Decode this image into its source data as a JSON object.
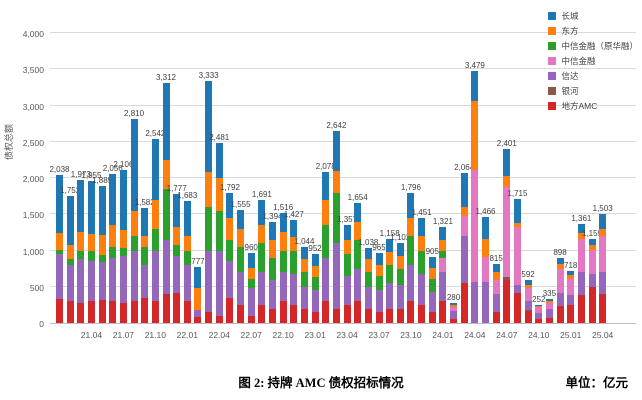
{
  "caption": {
    "title": "图 2: 持牌 AMC 债权招标情况",
    "unit": "单位：亿元"
  },
  "chart_data": {
    "type": "bar",
    "stacked": true,
    "title": "",
    "xlabel": "",
    "ylabel": "债权总额",
    "ylim": [
      0,
      4000
    ],
    "grid": "horizontal-only",
    "legend_position": "upper-right",
    "bar_count": 52,
    "y_ticks": [
      {
        "value": 0,
        "label": "0"
      },
      {
        "value": 500,
        "label": "500"
      },
      {
        "value": 1000,
        "label": "1,000"
      },
      {
        "value": 1500,
        "label": "1,500"
      },
      {
        "value": 2000,
        "label": "2,000"
      },
      {
        "value": 2500,
        "label": "2,500"
      },
      {
        "value": 3000,
        "label": "3,000"
      },
      {
        "value": 3500,
        "label": "3,500"
      },
      {
        "value": 4000,
        "label": "4,000"
      }
    ],
    "x_tick_labels": [
      "21.04",
      "21.07",
      "21.10",
      "22.01",
      "22.04",
      "22.07",
      "22.10",
      "23.01",
      "23.04",
      "23.07",
      "23.10",
      "24.01",
      "24.04",
      "24.07",
      "24.10",
      "25.01",
      "25.04"
    ],
    "x_tick_bar_indices": [
      3,
      6,
      9,
      12,
      15,
      18,
      21,
      24,
      27,
      30,
      33,
      36,
      39,
      42,
      45,
      48,
      51
    ],
    "totals": [
      2038,
      1752,
      1973,
      1955,
      1889,
      2056,
      2106,
      2810,
      1582,
      2542,
      3312,
      1777,
      1683,
      777,
      3333,
      2481,
      1792,
      1555,
      960,
      1691,
      1394,
      1516,
      1427,
      1044,
      952,
      2078,
      2642,
      1357,
      1654,
      1038,
      965,
      1158,
      1102,
      1796,
      1451,
      905,
      1321,
      280,
      2064,
      3479,
      1466,
      815,
      2401,
      1715,
      592,
      252,
      335,
      898,
      718,
      1361,
      1159,
      1503
    ],
    "legend": [
      {
        "name": "长城",
        "color": "#1f77b4"
      },
      {
        "name": "东方",
        "color": "#ff7f0e"
      },
      {
        "name": "中信金融（原华融）",
        "color": "#2ca02c"
      },
      {
        "name": "中信金融",
        "color": "#e377c2"
      },
      {
        "name": "信达",
        "color": "#9467bd"
      },
      {
        "name": "银河",
        "color": "#8c564b"
      },
      {
        "name": "地方AMC",
        "color": "#d62728"
      }
    ],
    "stack_order_bottom_to_top": [
      "地方AMC",
      "银河",
      "信达",
      "中信金融",
      "中信金融（原华融）",
      "东方",
      "长城"
    ],
    "series": [
      {
        "name": "长城",
        "color": "#1f77b4",
        "values": [
          798,
          672,
          723,
          725,
          669,
          706,
          826,
          1260,
          382,
          842,
          1062,
          457,
          483,
          297,
          1253,
          481,
          342,
          255,
          200,
          341,
          244,
          266,
          237,
          164,
          172,
          378,
          542,
          207,
          254,
          158,
          165,
          178,
          182,
          346,
          251,
          145,
          171,
          30,
          464,
          419,
          306,
          115,
          371,
          335,
          62,
          20,
          30,
          88,
          58,
          121,
          89,
          203
        ]
      },
      {
        "name": "东方",
        "color": "#ff7f0e",
        "values": [
          230,
          200,
          250,
          230,
          280,
          300,
          250,
          350,
          150,
          400,
          400,
          250,
          200,
          300,
          480,
          450,
          300,
          250,
          150,
          250,
          250,
          250,
          200,
          180,
          150,
          350,
          300,
          200,
          250,
          180,
          150,
          180,
          180,
          250,
          200,
          150,
          150,
          30,
          120,
          950,
          250,
          100,
          150,
          60,
          40,
          12,
          25,
          70,
          50,
          80,
          60,
          100
        ]
      },
      {
        "name": "中信金融（原华融）",
        "color": "#2ca02c",
        "values": [
          60,
          80,
          120,
          150,
          100,
          150,
          100,
          200,
          250,
          300,
          700,
          150,
          200,
          0,
          600,
          550,
          300,
          350,
          130,
          400,
          300,
          300,
          320,
          200,
          180,
          450,
          700,
          300,
          400,
          200,
          200,
          250,
          220,
          400,
          330,
          180,
          100,
          0,
          0,
          0,
          0,
          0,
          0,
          0,
          0,
          0,
          0,
          0,
          0,
          0,
          0,
          0
        ]
      },
      {
        "name": "中信金融",
        "color": "#e377c2",
        "values": [
          0,
          0,
          0,
          0,
          0,
          0,
          0,
          0,
          0,
          0,
          0,
          0,
          0,
          0,
          0,
          0,
          0,
          0,
          0,
          0,
          0,
          0,
          0,
          0,
          0,
          0,
          0,
          0,
          0,
          0,
          0,
          0,
          0,
          0,
          0,
          0,
          200,
          60,
          280,
          1550,
          350,
          200,
          1250,
          800,
          180,
          80,
          90,
          330,
          230,
          450,
          330,
          500
        ]
      },
      {
        "name": "信达",
        "color": "#9467bd",
        "values": [
          620,
          500,
          600,
          550,
          520,
          600,
          650,
          700,
          450,
          700,
          750,
          500,
          500,
          100,
          850,
          900,
          500,
          450,
          380,
          450,
          400,
          400,
          420,
          300,
          300,
          600,
          900,
          400,
          450,
          300,
          300,
          350,
          320,
          500,
          420,
          280,
          400,
          100,
          650,
          560,
          560,
          250,
          0,
          100,
          130,
          80,
          120,
          180,
          130,
          330,
          180,
          300
        ]
      },
      {
        "name": "银河",
        "color": "#8c564b",
        "values": [
          0,
          0,
          0,
          0,
          0,
          0,
          0,
          0,
          0,
          0,
          0,
          0,
          0,
          0,
          0,
          0,
          0,
          0,
          0,
          0,
          0,
          0,
          0,
          0,
          0,
          0,
          0,
          0,
          0,
          0,
          0,
          0,
          0,
          0,
          0,
          0,
          0,
          0,
          0,
          0,
          0,
          0,
          30,
          0,
          20,
          0,
          0,
          0,
          0,
          0,
          0,
          0
        ]
      },
      {
        "name": "地方AMC",
        "color": "#d62728",
        "values": [
          330,
          300,
          280,
          300,
          320,
          300,
          280,
          300,
          350,
          300,
          400,
          420,
          300,
          80,
          150,
          100,
          350,
          250,
          100,
          250,
          200,
          300,
          250,
          200,
          150,
          300,
          200,
          250,
          300,
          200,
          150,
          200,
          200,
          300,
          250,
          150,
          300,
          60,
          550,
          0,
          0,
          150,
          600,
          420,
          160,
          60,
          70,
          230,
          250,
          380,
          500,
          400
        ]
      }
    ]
  }
}
